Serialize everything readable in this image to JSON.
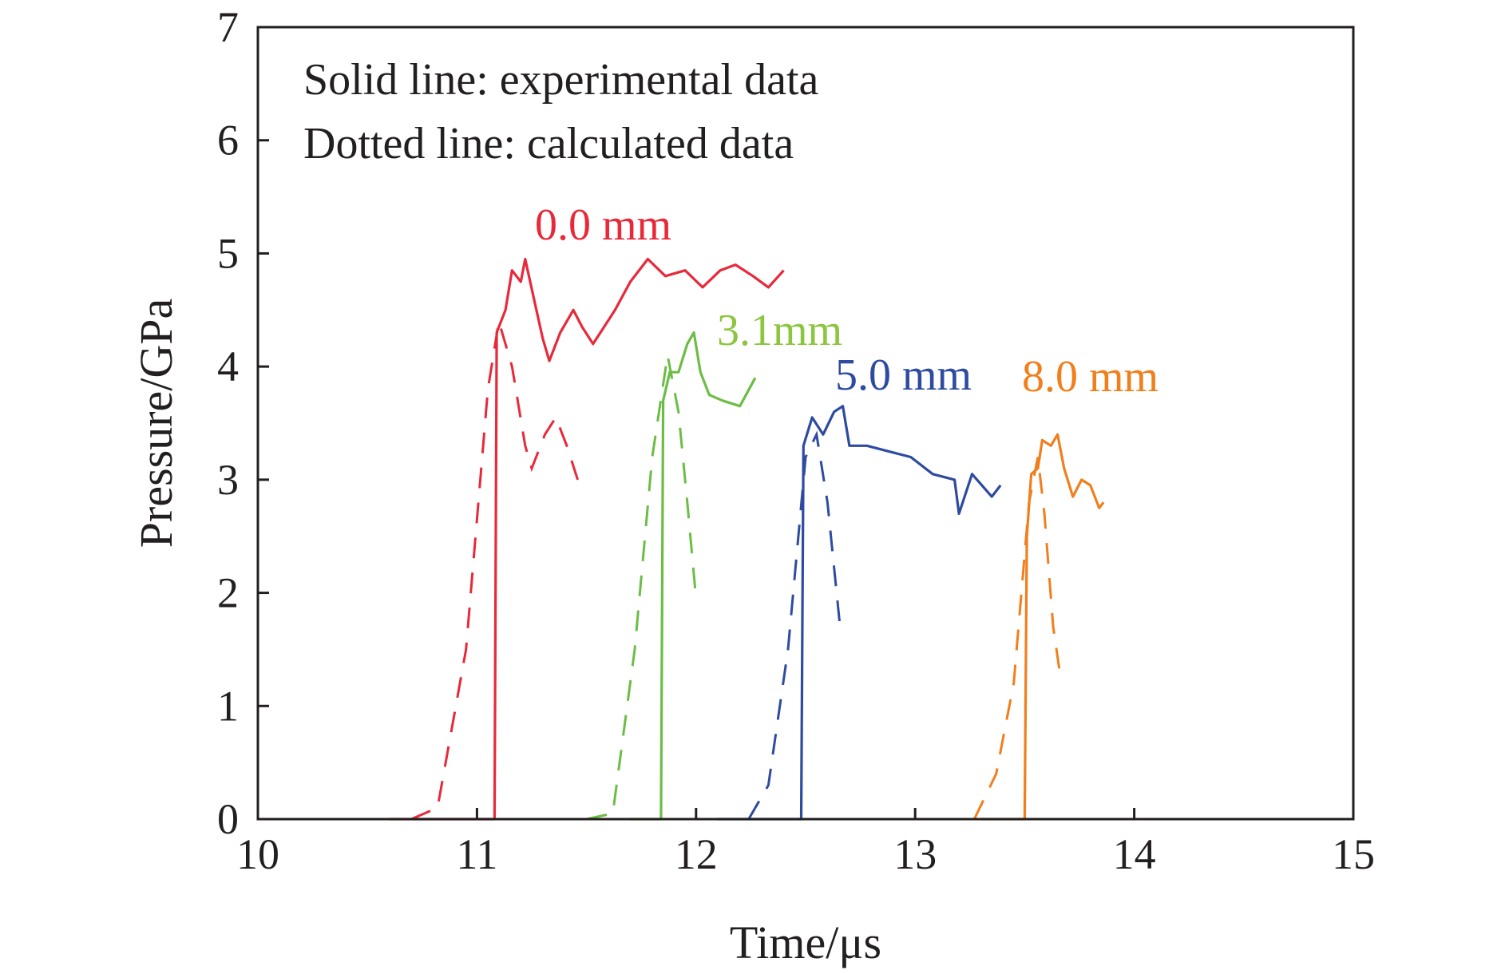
{
  "chart_data": {
    "type": "line",
    "xlabel": "Time/μs",
    "ylabel": "Pressure/GPa",
    "xlim": [
      10,
      15
    ],
    "ylim": [
      0,
      7
    ],
    "xticks": [
      10,
      11,
      12,
      13,
      14,
      15
    ],
    "yticks": [
      0,
      1,
      2,
      3,
      4,
      5,
      6,
      7
    ],
    "grid": false,
    "annotations": [
      "Solid line: experimental data",
      "Dotted line: calculated data"
    ],
    "series": [
      {
        "name": "0.0 mm",
        "color": "#e8293a",
        "experimental": [
          [
            10.6,
            0
          ],
          [
            11.08,
            0
          ],
          [
            11.09,
            4.3
          ],
          [
            11.13,
            4.5
          ],
          [
            11.16,
            4.85
          ],
          [
            11.2,
            4.75
          ],
          [
            11.22,
            4.95
          ],
          [
            11.26,
            4.6
          ],
          [
            11.3,
            4.25
          ],
          [
            11.33,
            4.05
          ],
          [
            11.38,
            4.3
          ],
          [
            11.44,
            4.5
          ],
          [
            11.48,
            4.35
          ],
          [
            11.53,
            4.2
          ],
          [
            11.58,
            4.35
          ],
          [
            11.63,
            4.5
          ],
          [
            11.7,
            4.75
          ],
          [
            11.78,
            4.95
          ],
          [
            11.86,
            4.8
          ],
          [
            11.95,
            4.85
          ],
          [
            12.03,
            4.7
          ],
          [
            12.11,
            4.85
          ],
          [
            12.18,
            4.9
          ],
          [
            12.26,
            4.8
          ],
          [
            12.33,
            4.7
          ],
          [
            12.4,
            4.85
          ]
        ],
        "calculated": [
          [
            10.7,
            0
          ],
          [
            10.82,
            0.1
          ],
          [
            10.95,
            1.5
          ],
          [
            11.05,
            3.8
          ],
          [
            11.1,
            4.4
          ],
          [
            11.16,
            4.0
          ],
          [
            11.22,
            3.3
          ],
          [
            11.25,
            3.1
          ],
          [
            11.31,
            3.4
          ],
          [
            11.36,
            3.55
          ],
          [
            11.41,
            3.3
          ],
          [
            11.46,
            3.0
          ]
        ]
      },
      {
        "name": "3.1mm",
        "color": "#6cbd45",
        "experimental": [
          [
            11.7,
            0
          ],
          [
            11.84,
            0
          ],
          [
            11.85,
            3.7
          ],
          [
            11.88,
            3.95
          ],
          [
            11.92,
            3.95
          ],
          [
            11.96,
            4.2
          ],
          [
            11.99,
            4.3
          ],
          [
            12.02,
            3.95
          ],
          [
            12.06,
            3.75
          ],
          [
            12.12,
            3.7
          ],
          [
            12.2,
            3.65
          ],
          [
            12.27,
            3.9
          ]
        ],
        "calculated": [
          [
            11.5,
            0
          ],
          [
            11.62,
            0.05
          ],
          [
            11.72,
            1.5
          ],
          [
            11.8,
            3.2
          ],
          [
            11.87,
            4.1
          ],
          [
            11.92,
            3.6
          ],
          [
            11.96,
            2.8
          ],
          [
            12.0,
            1.95
          ]
        ]
      },
      {
        "name": "5.0 mm",
        "color": "#2e4ba0",
        "experimental": [
          [
            12.1,
            0
          ],
          [
            12.48,
            0
          ],
          [
            12.49,
            3.3
          ],
          [
            12.53,
            3.55
          ],
          [
            12.58,
            3.4
          ],
          [
            12.63,
            3.6
          ],
          [
            12.67,
            3.65
          ],
          [
            12.7,
            3.3
          ],
          [
            12.78,
            3.3
          ],
          [
            12.88,
            3.25
          ],
          [
            12.98,
            3.2
          ],
          [
            13.08,
            3.05
          ],
          [
            13.18,
            3.0
          ],
          [
            13.2,
            2.7
          ],
          [
            13.26,
            3.05
          ],
          [
            13.35,
            2.85
          ],
          [
            13.39,
            2.95
          ]
        ],
        "calculated": [
          [
            12.24,
            0
          ],
          [
            12.33,
            0.3
          ],
          [
            12.42,
            1.5
          ],
          [
            12.5,
            3.2
          ],
          [
            12.55,
            3.4
          ],
          [
            12.6,
            2.8
          ],
          [
            12.66,
            1.65
          ]
        ]
      },
      {
        "name": "8.0 mm",
        "color": "#f07f1c",
        "experimental": [
          [
            13.3,
            0
          ],
          [
            13.5,
            0
          ],
          [
            13.51,
            2.5
          ],
          [
            13.53,
            3.05
          ],
          [
            13.56,
            3.1
          ],
          [
            13.58,
            3.35
          ],
          [
            13.62,
            3.3
          ],
          [
            13.65,
            3.4
          ],
          [
            13.68,
            3.1
          ],
          [
            13.72,
            2.85
          ],
          [
            13.76,
            3.0
          ],
          [
            13.8,
            2.95
          ],
          [
            13.84,
            2.75
          ],
          [
            13.86,
            2.8
          ]
        ],
        "calculated": [
          [
            13.27,
            0
          ],
          [
            13.37,
            0.4
          ],
          [
            13.45,
            1.2
          ],
          [
            13.52,
            2.8
          ],
          [
            13.56,
            3.2
          ],
          [
            13.59,
            2.7
          ],
          [
            13.63,
            1.7
          ],
          [
            13.66,
            1.3
          ]
        ]
      }
    ]
  }
}
